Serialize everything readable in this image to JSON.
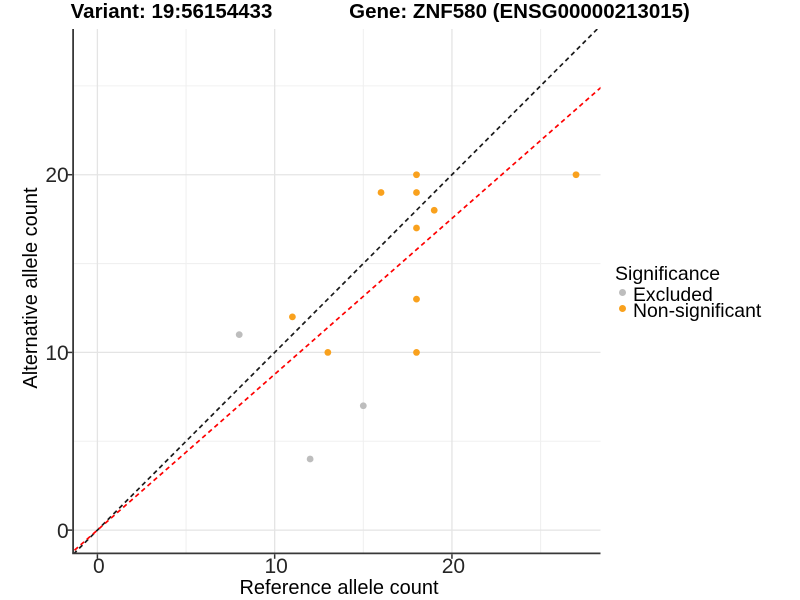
{
  "chart_data": {
    "type": "scatter",
    "title_variant": "Variant: 19:56154433",
    "title_gene": "Gene: ZNF580 (ENSG00000213015)",
    "xlabel": "Reference allele count",
    "ylabel": "Alternative allele count",
    "xlim": [
      -1.32,
      28.38
    ],
    "ylim": [
      -1.26,
      28.2
    ],
    "xticks": [
      0,
      10,
      20
    ],
    "yticks": [
      0,
      10,
      20
    ],
    "minor_xticks": [
      5,
      15,
      25
    ],
    "minor_yticks": [
      5,
      15,
      25
    ],
    "grid": true,
    "legend": {
      "title": "Significance",
      "position": "right"
    },
    "series": [
      {
        "name": "Excluded",
        "color": "#bdbdbd",
        "points": [
          [
            8,
            11
          ],
          [
            12,
            4
          ],
          [
            15,
            7
          ]
        ]
      },
      {
        "name": "Non-significant",
        "color": "#f9a11d",
        "points": [
          [
            11,
            12
          ],
          [
            13,
            10
          ],
          [
            16,
            19
          ],
          [
            18,
            20
          ],
          [
            18,
            19
          ],
          [
            19,
            18
          ],
          [
            18,
            17
          ],
          [
            18,
            13
          ],
          [
            18,
            10
          ],
          [
            27,
            20
          ]
        ]
      }
    ],
    "lines": [
      {
        "name": "identity-line",
        "slope": 1,
        "intercept": 0,
        "color": "#1a1a1a",
        "style": "dashed"
      },
      {
        "name": "fit-line",
        "slope": 0.877,
        "intercept": 0,
        "color": "#fe0000",
        "style": "dashed"
      }
    ],
    "colors": {
      "grid_major": "#e4e4e4",
      "grid_minor": "#f0f0f0",
      "axis": "#383838",
      "tick": "#333333"
    }
  }
}
